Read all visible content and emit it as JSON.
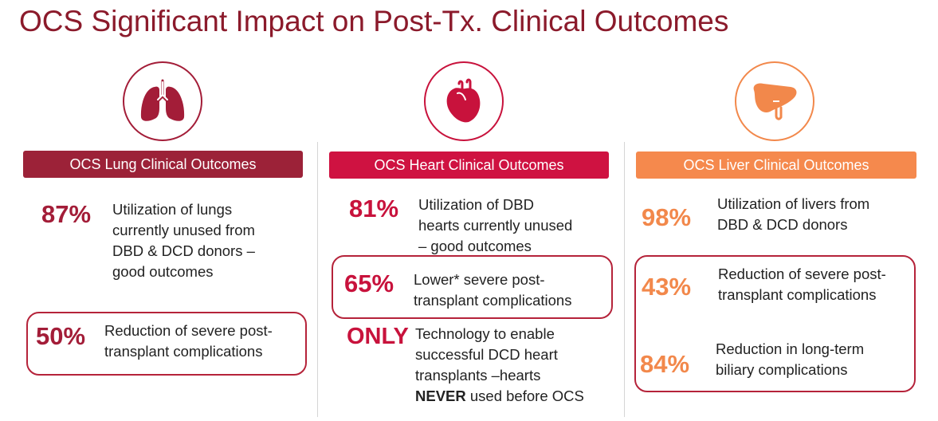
{
  "title": "OCS Significant Impact on Post-Tx. Clinical Outcomes",
  "colors": {
    "title": "#8b1a2b",
    "lung": "#a31d38",
    "heart": "#c8123c",
    "liver": "#f2884b",
    "box_border": "#b5233a"
  },
  "lung": {
    "icon": "lungs-icon",
    "header": "OCS Lung Clinical Outcomes",
    "stat1": {
      "value": "87%",
      "lines": [
        "Utilization of lungs",
        "currently unused from",
        "DBD & DCD donors –",
        "good outcomes"
      ]
    },
    "stat2": {
      "value": "50%",
      "lines": [
        "Reduction of severe post-",
        "transplant complications"
      ]
    }
  },
  "heart": {
    "icon": "heart-icon",
    "header": "OCS Heart Clinical Outcomes",
    "stat1": {
      "value": "81%",
      "lines": [
        "Utilization of DBD",
        "hearts currently unused",
        "– good outcomes"
      ]
    },
    "stat2": {
      "value": "65%",
      "lines": [
        "Lower* severe post-",
        "transplant complications"
      ]
    },
    "stat3": {
      "value": "ONLY",
      "lines": [
        "Technology to enable",
        "successful DCD heart",
        "transplants –hearts"
      ],
      "last_bold": "NEVER",
      "last_rest": " used before OCS"
    }
  },
  "liver": {
    "icon": "liver-icon",
    "header": "OCS Liver Clinical Outcomes",
    "stat1": {
      "value": "98%",
      "lines": [
        "Utilization of livers from",
        "DBD & DCD donors"
      ]
    },
    "stat2": {
      "value": "43%",
      "lines": [
        "Reduction of severe post-",
        "transplant complications"
      ]
    },
    "stat3": {
      "value": "84%",
      "lines": [
        "Reduction in long-term",
        "biliary complications"
      ]
    }
  }
}
